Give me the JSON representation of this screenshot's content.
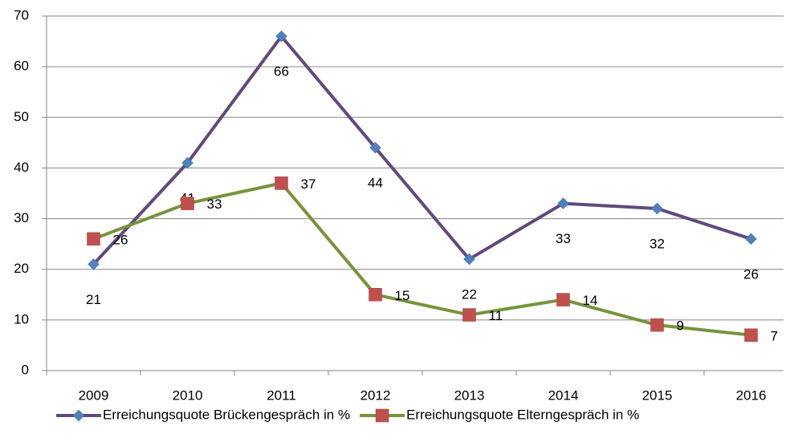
{
  "chart_data": {
    "type": "line",
    "categories": [
      "2009",
      "2010",
      "2011",
      "2012",
      "2013",
      "2014",
      "2015",
      "2016"
    ],
    "series": [
      {
        "name": "Erreichungsquote Brückengespräch in %",
        "color": "#604a7b",
        "marker_color": "#4f81bd",
        "marker": "diamond",
        "label_position": "below",
        "values": [
          21,
          41,
          66,
          44,
          22,
          33,
          32,
          26
        ]
      },
      {
        "name": "Erreichungsquote Elterngespräch in %",
        "color": "#77933c",
        "marker_color": "#c0504d",
        "marker": "square",
        "label_position": "right",
        "values": [
          26,
          33,
          37,
          15,
          11,
          14,
          9,
          7
        ]
      }
    ],
    "ylim": [
      0,
      70
    ],
    "yticks": [
      0,
      10,
      20,
      30,
      40,
      50,
      60,
      70
    ],
    "grid": true,
    "legend": "bottom"
  }
}
